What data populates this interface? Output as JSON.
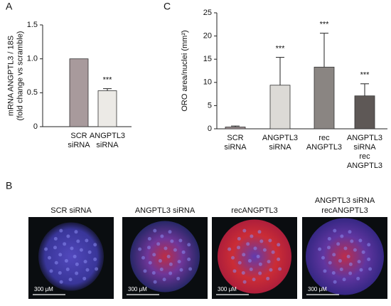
{
  "chart_data": [
    {
      "type": "bar",
      "panel": "A",
      "ylabel": [
        "mRNA ANGPTL3 / 18S",
        "(fold change vs scramble)"
      ],
      "categories": [
        [
          "SCR",
          "siRNA"
        ],
        [
          "ANGPTL3",
          "siRNA"
        ]
      ],
      "values": [
        1.0,
        0.53
      ],
      "errors": [
        0,
        0.03
      ],
      "colors": [
        "#a89a9c",
        "#eceae6"
      ],
      "significance": [
        null,
        "***"
      ],
      "ylim": [
        0,
        1.5
      ],
      "yticks": [
        0,
        0.5,
        {
          "value": 1,
          "label": "1.0"
        },
        1.5
      ]
    },
    {
      "type": "bar",
      "panel": "C",
      "ylabel": [
        "ORO area/nuclei (mm²)"
      ],
      "categories": [
        [
          "SCR",
          "siRNA"
        ],
        [
          "ANGPTL3",
          "siRNA"
        ],
        [
          "rec",
          "ANGPTL3"
        ],
        [
          "ANGPTL3",
          "siRNA",
          "rec",
          "ANGPTL3"
        ]
      ],
      "values": [
        0.4,
        9.4,
        13.3,
        7.1
      ],
      "errors": [
        0.2,
        6.0,
        7.3,
        2.6
      ],
      "colors": [
        "#a89a9c",
        "#dcdad6",
        "#8a8582",
        "#5e5856"
      ],
      "significance": [
        null,
        "***",
        "***",
        "***"
      ],
      "ylim": [
        0,
        25
      ],
      "yticks": [
        0,
        5,
        10,
        15,
        20,
        25
      ]
    }
  ],
  "micrographs": {
    "panel": "B",
    "images": [
      {
        "title": [
          "SCR siRNA"
        ],
        "scale_bar": "300 μM"
      },
      {
        "title": [
          "ANGPTL3 siRNA"
        ],
        "scale_bar": "300 μM"
      },
      {
        "title": [
          "recANGPTL3"
        ],
        "scale_bar": "300 μM"
      },
      {
        "title": [
          "ANGPTL3 siRNA",
          "recANGPTL3"
        ],
        "scale_bar": "300 μM"
      }
    ]
  }
}
